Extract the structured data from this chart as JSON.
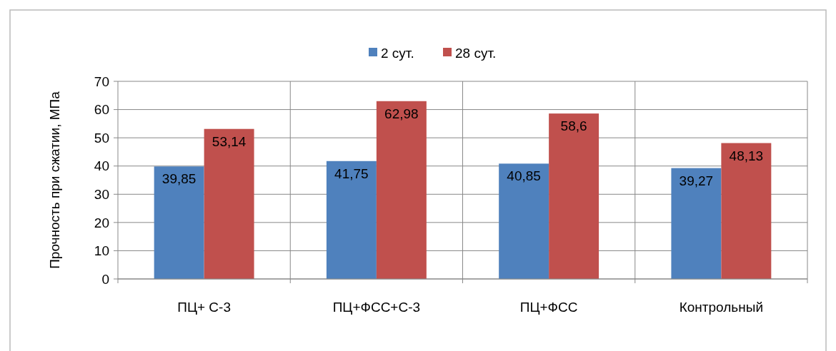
{
  "chart_data": {
    "type": "bar",
    "categories": [
      "ПЦ+ С-3",
      "ПЦ+ФСС+С-3",
      "ПЦ+ФСС",
      "Контрольный"
    ],
    "series": [
      {
        "name": "2 сут.",
        "color": "#4f81bd",
        "values": [
          39.85,
          41.75,
          40.85,
          39.27
        ],
        "value_labels": [
          "39,85",
          "41,75",
          "40,85",
          "39,27"
        ]
      },
      {
        "name": "28 сут.",
        "color": "#c0504d",
        "values": [
          53.14,
          62.98,
          58.6,
          48.13
        ],
        "value_labels": [
          "53,14",
          "62,98",
          "58,6",
          "48,13"
        ]
      }
    ],
    "ylabel": "Прочность при сжатии, МПа",
    "ylim": [
      0,
      70
    ],
    "yticks": [
      0,
      10,
      20,
      30,
      40,
      50,
      60,
      70
    ],
    "grid": true,
    "legend": "top"
  }
}
